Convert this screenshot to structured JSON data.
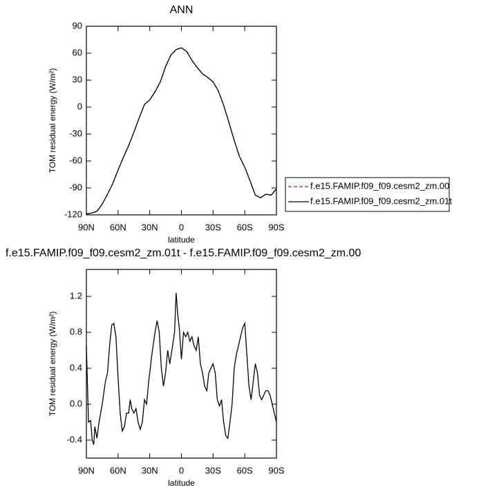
{
  "chart_data": [
    {
      "type": "line",
      "title": "ANN",
      "xlabel": "latitude",
      "ylabel": "TOM residual energy (W/m²)",
      "x": [
        90,
        85,
        80,
        75,
        70,
        65,
        60,
        55,
        50,
        45,
        40,
        35,
        30,
        25,
        20,
        15,
        10,
        5,
        0,
        -5,
        -10,
        -15,
        -20,
        -25,
        -30,
        -35,
        -40,
        -45,
        -50,
        -55,
        -60,
        -65,
        -70,
        -75,
        -80,
        -85,
        -90
      ],
      "series": [
        {
          "name": "f.e15.FAMIP.f09_f09.cesm2_zm.00",
          "color": "#ff0000",
          "style": "dashed",
          "values": [
            -119,
            -118,
            -116,
            -108,
            -97,
            -85,
            -70,
            -56,
            -43,
            -28,
            -12,
            3,
            8,
            17,
            28,
            45,
            58,
            64,
            66,
            62,
            52,
            44,
            37,
            33,
            28,
            18,
            2,
            -17,
            -37,
            -55,
            -67,
            -82,
            -98,
            -101,
            -97,
            -98,
            -91
          ]
        },
        {
          "name": "f.e15.FAMIP.f09_f09.cesm2_zm.01t",
          "color": "#000000",
          "style": "solid",
          "values": [
            -119,
            -118,
            -116,
            -108,
            -97,
            -85,
            -70,
            -56,
            -43,
            -28,
            -12,
            3,
            8,
            17,
            28,
            45,
            58,
            64,
            66,
            62,
            52,
            44,
            37,
            33,
            28,
            18,
            2,
            -17,
            -37,
            -55,
            -67,
            -82,
            -98,
            -101,
            -97,
            -98,
            -91
          ]
        }
      ],
      "xlim": [
        90,
        -90
      ],
      "xticks": [
        {
          "value": 90,
          "label": "90N"
        },
        {
          "value": 60,
          "label": "60N"
        },
        {
          "value": 30,
          "label": "30N"
        },
        0,
        {
          "value": -30,
          "label": "30S"
        },
        {
          "value": -60,
          "label": "60S"
        },
        {
          "value": -90,
          "label": "90S"
        }
      ],
      "ylim": [
        -120,
        90
      ],
      "yticks": [
        -120,
        -90,
        -60,
        -30,
        0,
        30,
        60,
        90
      ],
      "legend": "right"
    },
    {
      "type": "line",
      "title": "f.e15.FAMIP.f09_f09.cesm2_zm.01t - f.e15.FAMIP.f09_f09.cesm2_zm.00",
      "xlabel": "latitude",
      "ylabel": "TOM residual energy (W/m²)",
      "x": [
        90,
        88,
        86,
        84.5,
        83,
        82,
        80,
        78,
        75,
        72,
        70,
        68,
        66,
        64,
        62,
        60,
        58,
        56,
        54,
        52,
        50,
        48.5,
        47,
        45,
        43,
        41,
        39,
        37,
        35,
        33,
        31,
        28,
        25,
        23,
        21,
        19,
        17,
        15,
        13,
        11,
        9,
        6.5,
        5,
        3.5,
        2,
        0,
        -2,
        -4,
        -6,
        -8,
        -10,
        -12,
        -14,
        -16,
        -18,
        -20,
        -22,
        -24,
        -26,
        -28,
        -30,
        -32,
        -34,
        -36,
        -38,
        -40,
        -42,
        -44,
        -46,
        -48,
        -50,
        -52,
        -54,
        -56,
        -58,
        -60,
        -62,
        -64,
        -66,
        -68,
        -70,
        -72,
        -74,
        -76,
        -78,
        -80,
        -82,
        -84,
        -86,
        -88,
        -90
      ],
      "series": [
        {
          "color": "#000000",
          "style": "solid",
          "values": [
            0.65,
            -0.2,
            -0.18,
            -0.4,
            -0.45,
            -0.25,
            -0.38,
            -0.2,
            0.0,
            0.25,
            0.35,
            0.65,
            0.88,
            0.9,
            0.75,
            0.3,
            -0.1,
            -0.3,
            -0.25,
            -0.1,
            -0.1,
            0.05,
            -0.05,
            -0.1,
            -0.05,
            -0.2,
            -0.28,
            -0.2,
            0.05,
            0.0,
            0.25,
            0.55,
            0.8,
            0.93,
            0.8,
            0.4,
            0.2,
            0.35,
            0.6,
            0.45,
            0.6,
            0.8,
            1.24,
            1.0,
            0.85,
            0.5,
            0.8,
            0.75,
            0.8,
            0.7,
            0.75,
            0.65,
            0.6,
            0.75,
            0.45,
            0.35,
            0.2,
            0.15,
            0.35,
            0.4,
            0.45,
            0.35,
            0.05,
            -0.02,
            0.05,
            -0.2,
            -0.35,
            -0.38,
            -0.2,
            0.0,
            0.4,
            0.55,
            0.65,
            0.75,
            0.85,
            0.9,
            0.55,
            0.2,
            0.05,
            0.25,
            0.45,
            0.35,
            0.1,
            0.05,
            0.1,
            0.15,
            0.15,
            0.1,
            0.0,
            -0.1,
            -0.2
          ]
        }
      ],
      "xlim": [
        90,
        -90
      ],
      "xticks": [
        {
          "value": 90,
          "label": "90N"
        },
        {
          "value": 60,
          "label": "60N"
        },
        {
          "value": 30,
          "label": "30N"
        },
        0,
        {
          "value": -30,
          "label": "30S"
        },
        {
          "value": -60,
          "label": "60S"
        },
        {
          "value": -90,
          "label": "90S"
        }
      ],
      "ylim": [
        -0.6,
        1.5
      ],
      "yticks": [
        -0.4,
        {
          "value": 0,
          "label": "0.0"
        },
        0.4,
        0.8,
        1.2
      ]
    }
  ]
}
